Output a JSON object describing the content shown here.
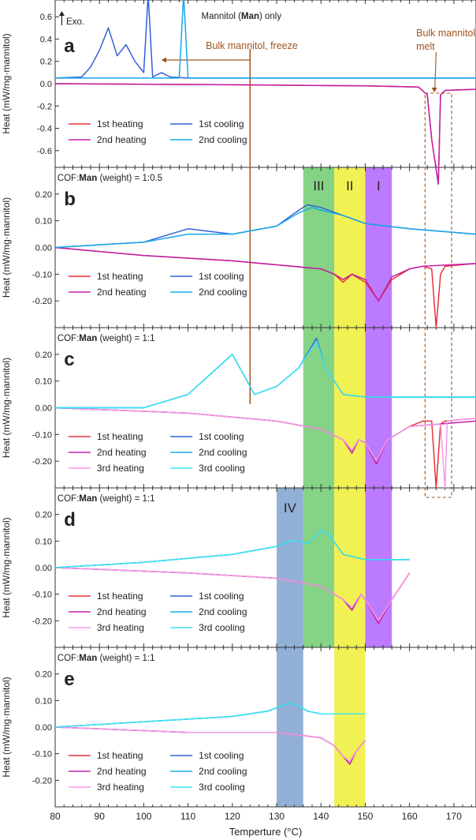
{
  "figure": {
    "x_label": "Temperture (°C)",
    "x_ticks": [
      80,
      90,
      100,
      110,
      120,
      130,
      140,
      150,
      160,
      170
    ],
    "y_label": "Heat (mW/mg·mannitol)",
    "exo_label": "Exo.",
    "bulk_freeze_label": "Bulk mannitol, freeze",
    "bulk_melt_label_1": "Bulk mannitol,",
    "bulk_melt_label_2": "melt",
    "bands": [
      {
        "label": "III",
        "color": "#5cc45c"
      },
      {
        "label": "II",
        "color": "#ecec1a"
      },
      {
        "label": "I",
        "color": "#a64dff"
      },
      {
        "label": "IV",
        "color": "#6d96c8"
      }
    ],
    "colors": {
      "heat1": "#e8303a",
      "heat2": "#c020a8",
      "heat3": "#f29ae8",
      "cool1": "#2f62d8",
      "cool2": "#18a8e8",
      "cool3": "#3fe6f2",
      "annot": "#a0521e"
    }
  },
  "panels": [
    {
      "id": "a",
      "header_pre": "Mannitol (",
      "header_bold": "Man",
      "header_post": ") only",
      "y_ticks": [
        "0.6",
        "0.4",
        "0.2",
        "0.0",
        "-0.2",
        "-0.4",
        "-0.6"
      ],
      "legend": [
        "1st heating",
        "1st cooling",
        "2nd heating",
        "2nd cooling"
      ]
    },
    {
      "id": "b",
      "header_pre": "COF:",
      "header_bold": "Man",
      "header_post": " (weight) = 1:0.5",
      "y_ticks": [
        "0.20",
        "0.10",
        "0.00",
        "-0.10",
        "-0.20"
      ],
      "legend": [
        "1st heating",
        "1st cooling",
        "2nd heating",
        "2nd cooling"
      ]
    },
    {
      "id": "c",
      "header_pre": "COF:",
      "header_bold": "Man",
      "header_post": " (weight) = 1:1",
      "y_ticks": [
        "0.20",
        "0.10",
        "0.00",
        "-0.10",
        "-0.20"
      ],
      "legend": [
        "1st heating",
        "1st cooling",
        "2nd heating",
        "2nd cooling",
        "3rd heating",
        "3rd cooling"
      ]
    },
    {
      "id": "d",
      "header_pre": "COF:",
      "header_bold": "Man",
      "header_post": " (weight) = 1:1",
      "y_ticks": [
        "0.20",
        "0.10",
        "0.00",
        "-0.10",
        "-0.20"
      ],
      "legend": [
        "1st heating",
        "1st cooling",
        "2nd heating",
        "2nd cooling",
        "3rd heating",
        "3rd cooling"
      ]
    },
    {
      "id": "e",
      "header_pre": "COF:",
      "header_bold": "Man",
      "header_post": " (weight) = 1:1",
      "y_ticks": [
        "0.20",
        "0.10",
        "0.00",
        "-0.10",
        "-0.20"
      ],
      "legend": [
        "1st heating",
        "1st cooling",
        "2nd heating",
        "2nd cooling",
        "3rd heating",
        "3rd cooling"
      ]
    }
  ],
  "chart_data": {
    "type": "line",
    "xlabel": "Temperture (°C)",
    "ylabel": "Heat (mW/mg·mannitol)",
    "xlim": [
      80,
      175
    ],
    "shaded_bands_C": [
      {
        "label": "III",
        "range": [
          136,
          143
        ]
      },
      {
        "label": "II",
        "range": [
          143,
          150
        ]
      },
      {
        "label": "I",
        "range": [
          150,
          156
        ]
      },
      {
        "label": "IV",
        "range": [
          130,
          136
        ]
      }
    ],
    "panels": [
      {
        "id": "a",
        "ylim": [
          -0.75,
          0.75
        ],
        "series": [
          {
            "name": "1st heating",
            "x": [
              80,
              120,
              150,
              162,
              164,
              165,
              166.5,
              167,
              168,
              175
            ],
            "y": [
              0.0,
              -0.01,
              -0.02,
              -0.03,
              -0.1,
              -0.5,
              -0.9,
              -0.1,
              -0.06,
              -0.05
            ]
          },
          {
            "name": "2nd heating",
            "x": [
              80,
              120,
              150,
              162,
              164,
              165,
              166.5,
              167,
              168,
              175
            ],
            "y": [
              0.0,
              -0.01,
              -0.02,
              -0.03,
              -0.1,
              -0.5,
              -0.9,
              -0.1,
              -0.06,
              -0.05
            ]
          },
          {
            "name": "1st cooling",
            "x": [
              80,
              86,
              88,
              90,
              92,
              94,
              96,
              98,
              100,
              101,
              102,
              104,
              106,
              110,
              130,
              150,
              175
            ],
            "y": [
              0.05,
              0.06,
              0.15,
              0.3,
              0.5,
              0.25,
              0.35,
              0.2,
              0.1,
              0.8,
              0.06,
              0.1,
              0.06,
              0.05,
              0.05,
              0.05,
              0.05
            ]
          },
          {
            "name": "2nd cooling",
            "x": [
              80,
              100,
              108,
              109,
              110,
              130,
              150,
              175
            ],
            "y": [
              0.05,
              0.05,
              0.05,
              0.8,
              0.05,
              0.05,
              0.05,
              0.05
            ]
          }
        ]
      },
      {
        "id": "b",
        "ylim": [
          -0.3,
          0.3
        ],
        "series": [
          {
            "name": "1st heating",
            "x": [
              80,
              100,
              120,
              140,
              143,
              145,
              147,
              150,
              153,
              156,
              160,
              163,
              165,
              166,
              167,
              168,
              175
            ],
            "y": [
              0.0,
              -0.03,
              -0.05,
              -0.08,
              -0.1,
              -0.13,
              -0.1,
              -0.13,
              -0.2,
              -0.12,
              -0.08,
              -0.07,
              -0.08,
              -0.3,
              -0.1,
              -0.07,
              -0.06
            ]
          },
          {
            "name": "2nd heating",
            "x": [
              80,
              100,
              120,
              140,
              143,
              145,
              147,
              150,
              153,
              156,
              160,
              163,
              175
            ],
            "y": [
              0.0,
              -0.03,
              -0.05,
              -0.08,
              -0.1,
              -0.12,
              -0.1,
              -0.12,
              -0.2,
              -0.11,
              -0.08,
              -0.07,
              -0.06
            ]
          },
          {
            "name": "1st cooling",
            "x": [
              80,
              100,
              110,
              120,
              130,
              135,
              137,
              140,
              145,
              150,
              160,
              175
            ],
            "y": [
              0.0,
              0.02,
              0.07,
              0.05,
              0.08,
              0.14,
              0.16,
              0.15,
              0.12,
              0.09,
              0.07,
              0.05
            ]
          },
          {
            "name": "2nd cooling",
            "x": [
              80,
              100,
              110,
              120,
              130,
              135,
              138,
              140,
              145,
              150,
              160,
              175
            ],
            "y": [
              0.0,
              0.02,
              0.05,
              0.05,
              0.08,
              0.13,
              0.15,
              0.14,
              0.12,
              0.09,
              0.07,
              0.05
            ]
          }
        ]
      },
      {
        "id": "c",
        "ylim": [
          -0.3,
          0.3
        ],
        "series": [
          {
            "name": "1st heating",
            "x": [
              80,
              110,
              130,
              140,
              145,
              147,
              148.5,
              150,
              152.5,
              155,
              160,
              163,
              165,
              166,
              167,
              168,
              175
            ],
            "y": [
              0.0,
              -0.02,
              -0.05,
              -0.08,
              -0.12,
              -0.16,
              -0.12,
              -0.13,
              -0.21,
              -0.12,
              -0.07,
              -0.05,
              -0.05,
              -0.3,
              -0.06,
              -0.05,
              -0.04
            ]
          },
          {
            "name": "2nd heating",
            "x": [
              80,
              110,
              130,
              140,
              145,
              147,
              148.5,
              150,
              152.5,
              155,
              160,
              175
            ],
            "y": [
              0.0,
              -0.02,
              -0.05,
              -0.08,
              -0.12,
              -0.17,
              -0.12,
              -0.13,
              -0.21,
              -0.12,
              -0.07,
              -0.05
            ]
          },
          {
            "name": "3rd heating",
            "x": [
              80,
              110,
              130,
              140,
              145,
              147,
              148.5,
              150,
              152.5,
              155,
              160,
              167,
              168,
              168.5,
              175
            ],
            "y": [
              0.0,
              -0.02,
              -0.05,
              -0.08,
              -0.12,
              -0.16,
              -0.12,
              -0.13,
              -0.2,
              -0.12,
              -0.07,
              -0.06,
              -0.3,
              -0.05,
              -0.04
            ]
          },
          {
            "name": "1st cooling",
            "x": [
              80,
              100,
              110,
              120,
              125,
              130,
              135,
              139,
              141,
              145,
              150,
              160,
              175
            ],
            "y": [
              0.0,
              0.0,
              0.05,
              0.2,
              0.05,
              0.08,
              0.15,
              0.26,
              0.15,
              0.05,
              0.04,
              0.04,
              0.04
            ]
          },
          {
            "name": "2nd cooling",
            "x": [
              80,
              100,
              110,
              120,
              125,
              130,
              135,
              139,
              141,
              145,
              150,
              160,
              175
            ],
            "y": [
              0.0,
              0.0,
              0.05,
              0.2,
              0.05,
              0.08,
              0.15,
              0.25,
              0.15,
              0.05,
              0.04,
              0.04,
              0.04
            ]
          },
          {
            "name": "3rd cooling",
            "x": [
              80,
              100,
              110,
              120,
              125,
              130,
              135,
              139,
              141,
              145,
              150,
              160,
              175
            ],
            "y": [
              0.0,
              0.0,
              0.05,
              0.2,
              0.05,
              0.08,
              0.15,
              0.25,
              0.15,
              0.05,
              0.04,
              0.04,
              0.04
            ]
          }
        ]
      },
      {
        "id": "d",
        "ylim": [
          -0.3,
          0.3
        ],
        "series": [
          {
            "name": "1st heating",
            "x": [
              80,
              110,
              130,
              140,
              145,
              147,
              149,
              150,
              153,
              156,
              160
            ],
            "y": [
              0.0,
              -0.02,
              -0.04,
              -0.07,
              -0.12,
              -0.16,
              -0.1,
              -0.12,
              -0.21,
              -0.12,
              -0.02
            ]
          },
          {
            "name": "2nd heating",
            "x": [
              80,
              110,
              130,
              140,
              145,
              147,
              149,
              150,
              153,
              156,
              160
            ],
            "y": [
              0.0,
              -0.02,
              -0.04,
              -0.07,
              -0.12,
              -0.16,
              -0.1,
              -0.12,
              -0.21,
              -0.12,
              -0.02
            ]
          },
          {
            "name": "3rd heating",
            "x": [
              80,
              110,
              130,
              140,
              145,
              147,
              149,
              150,
              153,
              156,
              160
            ],
            "y": [
              0.0,
              -0.02,
              -0.04,
              -0.07,
              -0.12,
              -0.15,
              -0.1,
              -0.12,
              -0.2,
              -0.12,
              -0.02
            ]
          },
          {
            "name": "1st cooling",
            "x": [
              80,
              100,
              120,
              130,
              133,
              135,
              137,
              140,
              142,
              145,
              150,
              160
            ],
            "y": [
              0.0,
              0.02,
              0.05,
              0.08,
              0.1,
              0.1,
              0.09,
              0.14,
              0.12,
              0.05,
              0.03,
              0.03
            ]
          },
          {
            "name": "2nd cooling",
            "x": [
              80,
              100,
              120,
              130,
              133,
              135,
              137,
              140,
              142,
              145,
              150,
              160
            ],
            "y": [
              0.0,
              0.02,
              0.05,
              0.08,
              0.1,
              0.1,
              0.09,
              0.14,
              0.12,
              0.05,
              0.03,
              0.03
            ]
          },
          {
            "name": "3rd cooling",
            "x": [
              80,
              100,
              120,
              130,
              133,
              135,
              137,
              140,
              142,
              145,
              150,
              160
            ],
            "y": [
              0.0,
              0.02,
              0.05,
              0.08,
              0.1,
              0.1,
              0.09,
              0.14,
              0.12,
              0.05,
              0.03,
              0.03
            ]
          }
        ]
      },
      {
        "id": "e",
        "ylim": [
          -0.3,
          0.3
        ],
        "series": [
          {
            "name": "1st heating",
            "x": [
              80,
              110,
              130,
              140,
              143,
              145,
              146.5,
              148,
              150
            ],
            "y": [
              0.0,
              -0.02,
              -0.02,
              -0.04,
              -0.07,
              -0.11,
              -0.13,
              -0.09,
              -0.05
            ]
          },
          {
            "name": "2nd heating",
            "x": [
              80,
              110,
              130,
              140,
              143,
              145,
              146.5,
              148,
              150
            ],
            "y": [
              0.0,
              -0.02,
              -0.02,
              -0.04,
              -0.07,
              -0.11,
              -0.14,
              -0.09,
              -0.05
            ]
          },
          {
            "name": "3rd heating",
            "x": [
              80,
              110,
              130,
              140,
              143,
              145,
              146.5,
              148,
              150
            ],
            "y": [
              0.0,
              -0.02,
              -0.02,
              -0.04,
              -0.07,
              -0.11,
              -0.13,
              -0.09,
              -0.05
            ]
          },
          {
            "name": "1st cooling",
            "x": [
              80,
              100,
              120,
              128,
              131,
              133,
              135,
              137,
              140,
              145,
              150
            ],
            "y": [
              0.0,
              0.02,
              0.04,
              0.06,
              0.08,
              0.09,
              0.08,
              0.06,
              0.05,
              0.05,
              0.05
            ]
          },
          {
            "name": "2nd cooling",
            "x": [
              80,
              100,
              120,
              128,
              131,
              133,
              135,
              137,
              140,
              145,
              150
            ],
            "y": [
              0.0,
              0.02,
              0.04,
              0.06,
              0.08,
              0.09,
              0.08,
              0.06,
              0.05,
              0.05,
              0.05
            ]
          },
          {
            "name": "3rd cooling",
            "x": [
              80,
              100,
              120,
              128,
              131,
              133,
              135,
              137,
              140,
              145,
              150
            ],
            "y": [
              0.0,
              0.02,
              0.04,
              0.06,
              0.08,
              0.09,
              0.08,
              0.06,
              0.05,
              0.05,
              0.05
            ]
          }
        ]
      }
    ]
  }
}
